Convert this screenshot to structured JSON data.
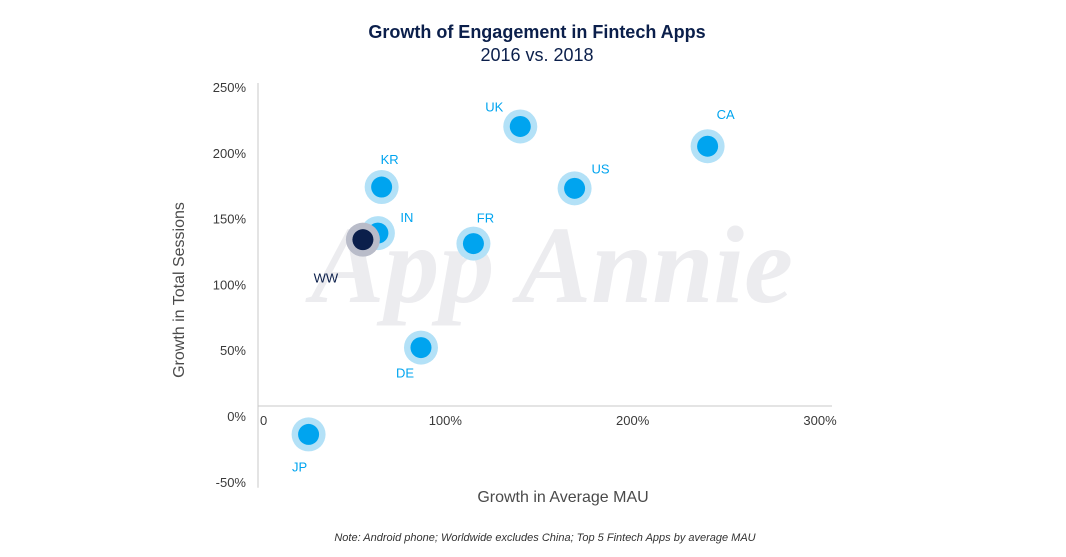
{
  "chart_data": {
    "type": "scatter",
    "title": "Growth of Engagement in Fintech Apps",
    "subtitle": "2016 vs. 2018",
    "xlabel": "Growth in Average MAU",
    "ylabel": "Growth in Total Sessions",
    "xlim": [
      0,
      300
    ],
    "ylim": [
      -50,
      250
    ],
    "x_ticks": [
      {
        "value": 0,
        "label": "0"
      },
      {
        "value": 100,
        "label": "100%"
      },
      {
        "value": 200,
        "label": "200%"
      },
      {
        "value": 300,
        "label": "300%"
      }
    ],
    "y_ticks": [
      {
        "value": 250,
        "label": "250%"
      },
      {
        "value": 200,
        "label": "200%"
      },
      {
        "value": 150,
        "label": "150%"
      },
      {
        "value": 100,
        "label": "100%"
      },
      {
        "value": 50,
        "label": "50%"
      },
      {
        "value": 0,
        "label": "0%"
      },
      {
        "value": -50,
        "label": "-50%"
      }
    ],
    "grid": false,
    "colors": {
      "country_point": "#00a4ef",
      "country_halo": "#b3e1f7",
      "ww_point": "#0b1f4b",
      "ww_halo": "#b9bcc9",
      "country_label": "#00a4ef",
      "ww_label": "#0b1f4b"
    },
    "points": [
      {
        "label": "UK",
        "x": 140,
        "y": 220,
        "kind": "country",
        "label_pos": "upper-left"
      },
      {
        "label": "CA",
        "x": 240,
        "y": 205,
        "kind": "country",
        "label_pos": "upper-right"
      },
      {
        "label": "KR",
        "x": 66,
        "y": 174,
        "kind": "country",
        "label_pos": "upper-right"
      },
      {
        "label": "US",
        "x": 169,
        "y": 173,
        "kind": "country",
        "label_pos": "upper-right"
      },
      {
        "label": "IN",
        "x": 64,
        "y": 139,
        "kind": "country",
        "label_pos": "upper-right"
      },
      {
        "label": "FR",
        "x": 115,
        "y": 131,
        "kind": "country",
        "label_pos": "upper-right"
      },
      {
        "label": "WW",
        "x": 56,
        "y": 134,
        "kind": "worldwide",
        "label_pos": "lower-left"
      },
      {
        "label": "DE",
        "x": 87,
        "y": 52,
        "kind": "country",
        "label_pos": "lower-left"
      },
      {
        "label": "JP",
        "x": 27,
        "y": -14,
        "kind": "country",
        "label_pos": "lower-left"
      }
    ],
    "watermark": "App Annie",
    "note": "Note: Android phone; Worldwide excludes China; Top 5 Fintech Apps by average MAU"
  }
}
